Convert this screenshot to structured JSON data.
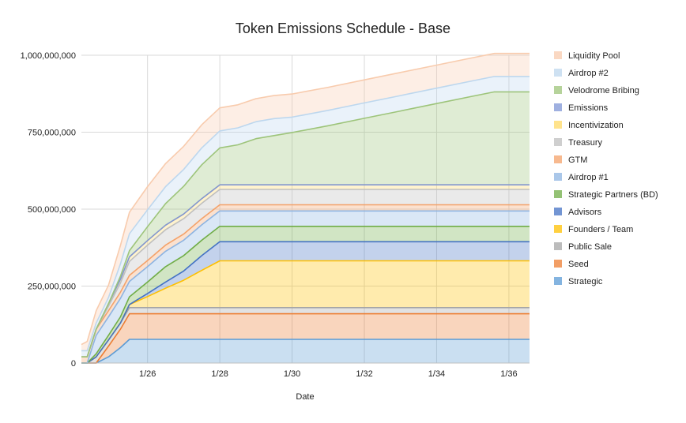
{
  "chart_data": {
    "type": "area",
    "stacked": true,
    "title": "Token Emissions Schedule - Base",
    "xlabel": "Date",
    "ylabel": "",
    "x_axis_kind": "date",
    "x_start_date": "1/25",
    "x_tick_labels": [
      "1/26",
      "1/28",
      "1/30",
      "1/32",
      "1/34",
      "1/36"
    ],
    "x_ticks": [
      1.0,
      3.0,
      5.0,
      7.0,
      9.0,
      11.0
    ],
    "xlim": [
      -0.83,
      11.57
    ],
    "ylim": [
      0,
      1000000000
    ],
    "y_tick_labels": [
      "0",
      "250,000,000",
      "500,000,000",
      "750,000,000",
      "1,000,000,000"
    ],
    "y_ticks": [
      0,
      250000000,
      500000000,
      750000000,
      1000000000
    ],
    "grid": "vertical and horizontal",
    "legend_position": "right",
    "x": [
      -0.83,
      -0.67,
      -0.42,
      -0.08,
      0.25,
      0.5,
      1.0,
      1.5,
      2.0,
      2.5,
      3.0,
      3.5,
      4.0,
      4.5,
      5.0,
      6.0,
      7.0,
      8.0,
      9.0,
      10.0,
      10.6,
      11.0,
      11.57
    ],
    "series": [
      {
        "name": "Strategic",
        "color": "#5b9bd5",
        "values": [
          0,
          0,
          0,
          20000000,
          50000000,
          77000000,
          77000000,
          77000000,
          77000000,
          77000000,
          77000000,
          77000000,
          77000000,
          77000000,
          77000000,
          77000000,
          77000000,
          77000000,
          77000000,
          77000000,
          77000000,
          77000000,
          77000000
        ]
      },
      {
        "name": "Seed",
        "color": "#ed7d31",
        "values": [
          0,
          0,
          0,
          35000000,
          60000000,
          83000000,
          83000000,
          83000000,
          83000000,
          83000000,
          83000000,
          83000000,
          83000000,
          83000000,
          83000000,
          83000000,
          83000000,
          83000000,
          83000000,
          83000000,
          83000000,
          83000000,
          83000000
        ]
      },
      {
        "name": "Public Sale",
        "color": "#a5a5a5",
        "values": [
          0,
          0,
          20000000,
          20000000,
          20000000,
          20000000,
          20000000,
          20000000,
          20000000,
          20000000,
          20000000,
          20000000,
          20000000,
          20000000,
          20000000,
          20000000,
          20000000,
          20000000,
          20000000,
          20000000,
          20000000,
          20000000,
          20000000
        ]
      },
      {
        "name": "Founders / Team",
        "color": "#ffc000",
        "values": [
          0,
          0,
          0,
          0,
          0,
          10000000,
          36000000,
          63000000,
          89000000,
          121000000,
          152000000,
          152000000,
          152000000,
          152000000,
          152000000,
          152000000,
          152000000,
          152000000,
          152000000,
          152000000,
          152000000,
          152000000,
          152000000
        ]
      },
      {
        "name": "Advisors",
        "color": "#4472c4",
        "values": [
          0,
          0,
          0,
          0,
          0,
          0,
          10000000,
          20000000,
          30000000,
          48000000,
          62000000,
          62000000,
          62000000,
          62000000,
          62000000,
          62000000,
          62000000,
          62000000,
          62000000,
          62000000,
          62000000,
          62000000,
          62000000
        ]
      },
      {
        "name": "Strategic Partners (BD)",
        "color": "#70ad47",
        "values": [
          0,
          0,
          10000000,
          15000000,
          20000000,
          25000000,
          37000000,
          50000000,
          50000000,
          50000000,
          50000000,
          50000000,
          50000000,
          50000000,
          50000000,
          50000000,
          50000000,
          50000000,
          50000000,
          50000000,
          50000000,
          50000000,
          50000000
        ]
      },
      {
        "name": "Airdrop #1",
        "color": "#8db4e2",
        "values": [
          0,
          0,
          60000000,
          60000000,
          60000000,
          50000000,
          50000000,
          50000000,
          50000000,
          50000000,
          50000000,
          50000000,
          50000000,
          50000000,
          50000000,
          50000000,
          50000000,
          50000000,
          50000000,
          50000000,
          50000000,
          50000000,
          50000000
        ]
      },
      {
        "name": "GTM",
        "color": "#f4a26a",
        "values": [
          20000000,
          20000000,
          20000000,
          20000000,
          20000000,
          20000000,
          20000000,
          20000000,
          20000000,
          20000000,
          20000000,
          20000000,
          20000000,
          20000000,
          20000000,
          20000000,
          20000000,
          20000000,
          20000000,
          20000000,
          20000000,
          20000000,
          20000000
        ]
      },
      {
        "name": "Treasury",
        "color": "#bfbfbf",
        "values": [
          0,
          0,
          0,
          15000000,
          30000000,
          45000000,
          50000000,
          50000000,
          50000000,
          50000000,
          50000000,
          50000000,
          50000000,
          50000000,
          50000000,
          50000000,
          50000000,
          50000000,
          50000000,
          50000000,
          50000000,
          50000000,
          50000000
        ]
      },
      {
        "name": "Incentivization",
        "color": "#ffd966",
        "values": [
          0,
          0,
          0,
          8000000,
          12000000,
          15000000,
          15000000,
          15000000,
          15000000,
          15000000,
          15000000,
          15000000,
          15000000,
          15000000,
          15000000,
          15000000,
          15000000,
          15000000,
          15000000,
          15000000,
          15000000,
          15000000,
          15000000
        ]
      },
      {
        "name": "Emissions",
        "color": "#7f96d6",
        "values": [
          0,
          0,
          0,
          0,
          0,
          0,
          0,
          0,
          0,
          0,
          0,
          0,
          0,
          0,
          0,
          0,
          0,
          0,
          0,
          0,
          0,
          0,
          0
        ]
      },
      {
        "name": "Velodrome Bribing",
        "color": "#9dc47a",
        "values": [
          0,
          0,
          0,
          0,
          10000000,
          20000000,
          45000000,
          70000000,
          90000000,
          110000000,
          120000000,
          130000000,
          150000000,
          160000000,
          170000000,
          192000000,
          216000000,
          240000000,
          264000000,
          288000000,
          302000000,
          302000000,
          302000000
        ]
      },
      {
        "name": "Airdrop #2",
        "color": "#bdd7ee",
        "values": [
          20000000,
          20000000,
          20000000,
          20000000,
          40000000,
          55000000,
          55000000,
          55000000,
          55000000,
          55000000,
          55000000,
          55000000,
          55000000,
          55000000,
          50000000,
          50000000,
          50000000,
          50000000,
          50000000,
          50000000,
          50000000,
          50000000,
          50000000
        ]
      },
      {
        "name": "Liquidity Pool",
        "color": "#f8cbad",
        "values": [
          20000000,
          30000000,
          40000000,
          40000000,
          60000000,
          70000000,
          75000000,
          75000000,
          75000000,
          75000000,
          75000000,
          75000000,
          75000000,
          75000000,
          75000000,
          75000000,
          75000000,
          75000000,
          75000000,
          75000000,
          75000000,
          75000000,
          75000000
        ]
      }
    ],
    "legend_order": [
      "Liquidity Pool",
      "Airdrop #2",
      "Velodrome Bribing",
      "Emissions",
      "Incentivization",
      "Treasury",
      "GTM",
      "Airdrop #1",
      "Strategic Partners (BD)",
      "Advisors",
      "Founders / Team",
      "Public Sale",
      "Seed",
      "Strategic"
    ]
  }
}
